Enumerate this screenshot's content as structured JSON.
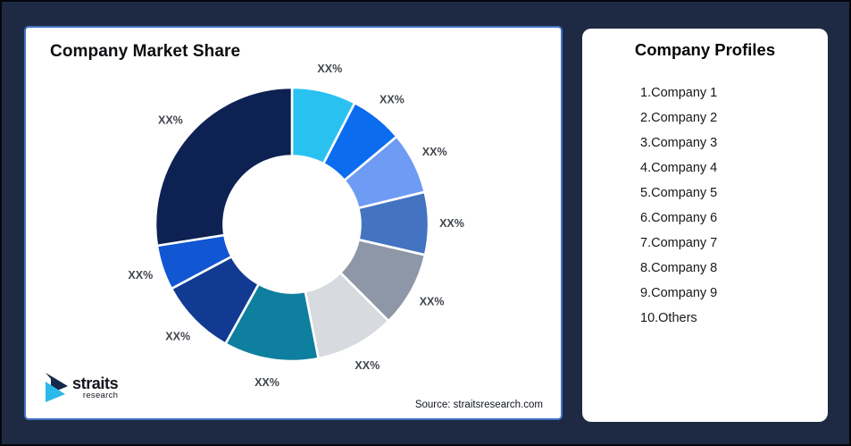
{
  "window": {
    "background_color": "#1E2A44",
    "outer_border_color": "#05070c"
  },
  "chart_card": {
    "title": "Company Market Share",
    "border_color": "#4472C4",
    "source_note": "Source: straitsresearch.com",
    "logo": {
      "line1": "straits",
      "line2": "research",
      "mark_navy_color": "#16294A",
      "mark_cyan_color": "#2CB9EA"
    }
  },
  "profiles_card": {
    "title": "Company Profiles",
    "items": [
      "1.Company 1",
      "2.Company 2",
      "3.Company 3",
      "4.Company 4",
      "5.Company 5",
      "6.Company 6",
      "7.Company 7",
      "8.Company 8",
      "9.Company 9",
      "10.Others"
    ]
  },
  "chart_data": {
    "type": "pie",
    "subtype": "donut",
    "title": "Company Market Share",
    "start_angle_deg": 0,
    "direction": "clockwise",
    "hole_ratio": 0.5,
    "gap_color": "#ffffff",
    "segments": [
      {
        "label": "XX%",
        "share_pct_est": 7.6,
        "color": "#29C1F0"
      },
      {
        "label": "XX%",
        "share_pct_est": 6.3,
        "color": "#0B6CEF"
      },
      {
        "label": "XX%",
        "share_pct_est": 7.3,
        "color": "#6E9BF4"
      },
      {
        "label": "XX%",
        "share_pct_est": 7.4,
        "color": "#4473C1"
      },
      {
        "label": "XX%",
        "share_pct_est": 8.9,
        "color": "#8E97A7"
      },
      {
        "label": "XX%",
        "share_pct_est": 9.4,
        "color": "#D7DADF"
      },
      {
        "label": "XX%",
        "share_pct_est": 11.2,
        "color": "#0E7F9E"
      },
      {
        "label": "XX%",
        "share_pct_est": 9.1,
        "color": "#123A92"
      },
      {
        "label": "XX%",
        "share_pct_est": 5.3,
        "color": "#1156D2"
      },
      {
        "label": "XX%",
        "share_pct_est": 27.5,
        "color": "#0D2253"
      }
    ]
  }
}
